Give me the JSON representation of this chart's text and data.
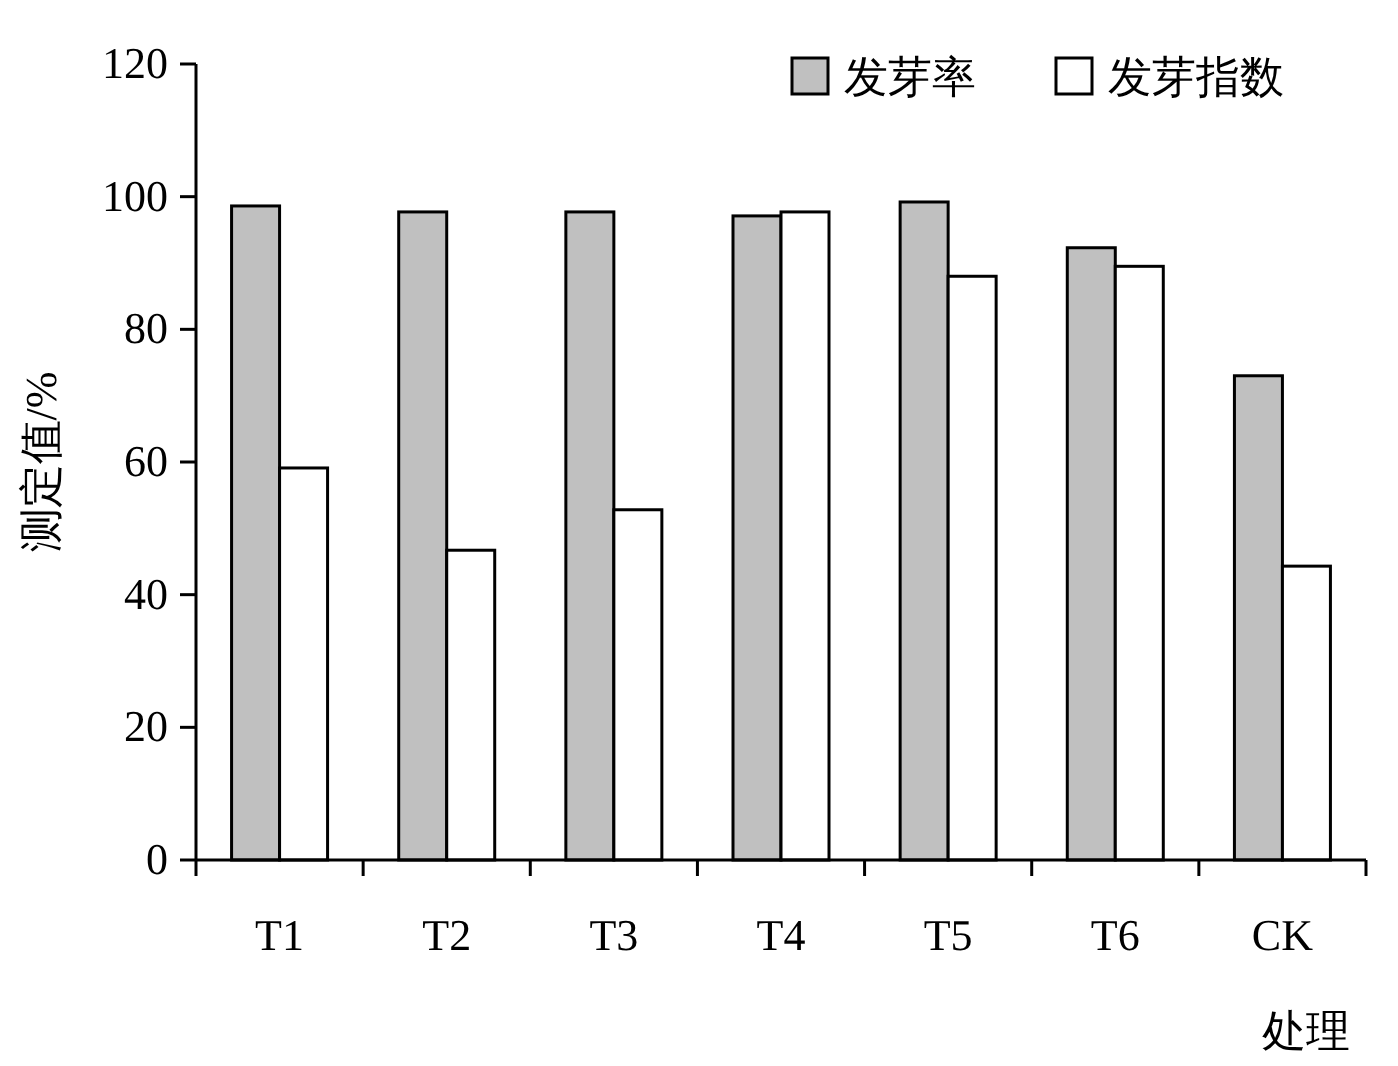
{
  "chart_data": {
    "type": "bar",
    "categories": [
      "T1",
      "T2",
      "T3",
      "T4",
      "T5",
      "T6",
      "CK"
    ],
    "series": [
      {
        "name": "发芽率",
        "color": "#c0c0c0",
        "values": [
          98.6,
          97.7,
          97.7,
          97.1,
          99.2,
          92.3,
          73.0
        ]
      },
      {
        "name": "发芽指数",
        "color": "#ffffff",
        "values": [
          59.1,
          46.7,
          52.8,
          97.7,
          88.0,
          89.5,
          44.3
        ]
      }
    ],
    "xlabel": "处理",
    "ylabel": "测定值/%",
    "ylim": [
      0,
      120
    ],
    "yticks": [
      0,
      20,
      40,
      60,
      80,
      100,
      120
    ],
    "legend": "top right",
    "grid": false
  }
}
